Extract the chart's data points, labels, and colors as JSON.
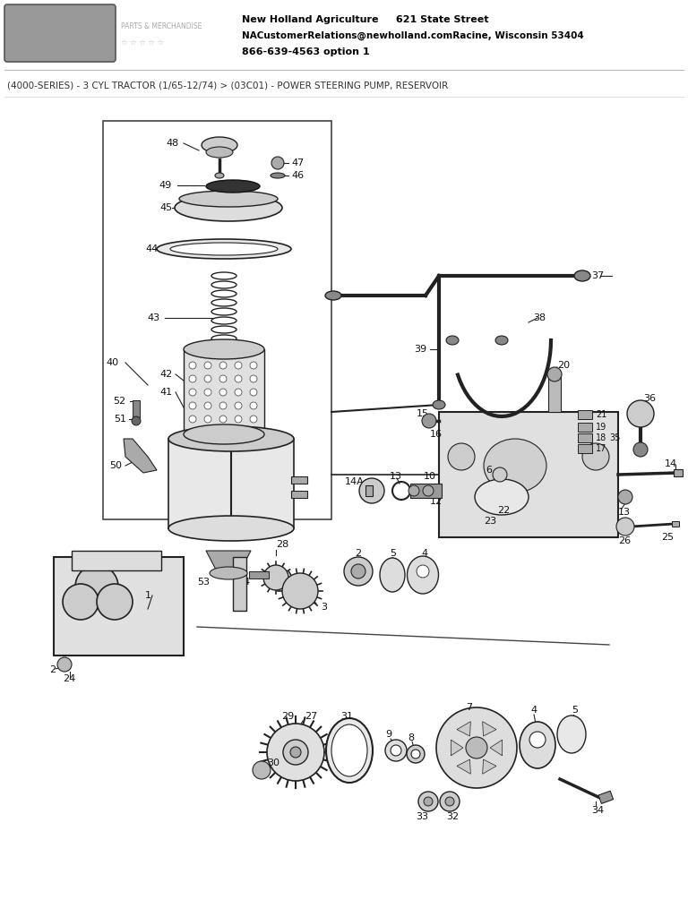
{
  "bg_color": "#ffffff",
  "page_width": 7.68,
  "page_height": 10.24,
  "dpi": 100,
  "header": {
    "company_line1": "New Holland Agriculture     621 State Street",
    "company_line2": "NACustomerRelations@newholland.comRacine, Wisconsin 53404",
    "company_line3": "866-639-4563 option 1"
  },
  "breadcrumb": "(4000-SERIES) - 3 CYL TRACTOR (1/65-12/74) > (03C01) - POWER STEERING PUMP, RESERVOIR",
  "line_color": "#222222",
  "part_color": "#cccccc",
  "dark_part": "#888888",
  "light_part": "#eeeeee"
}
